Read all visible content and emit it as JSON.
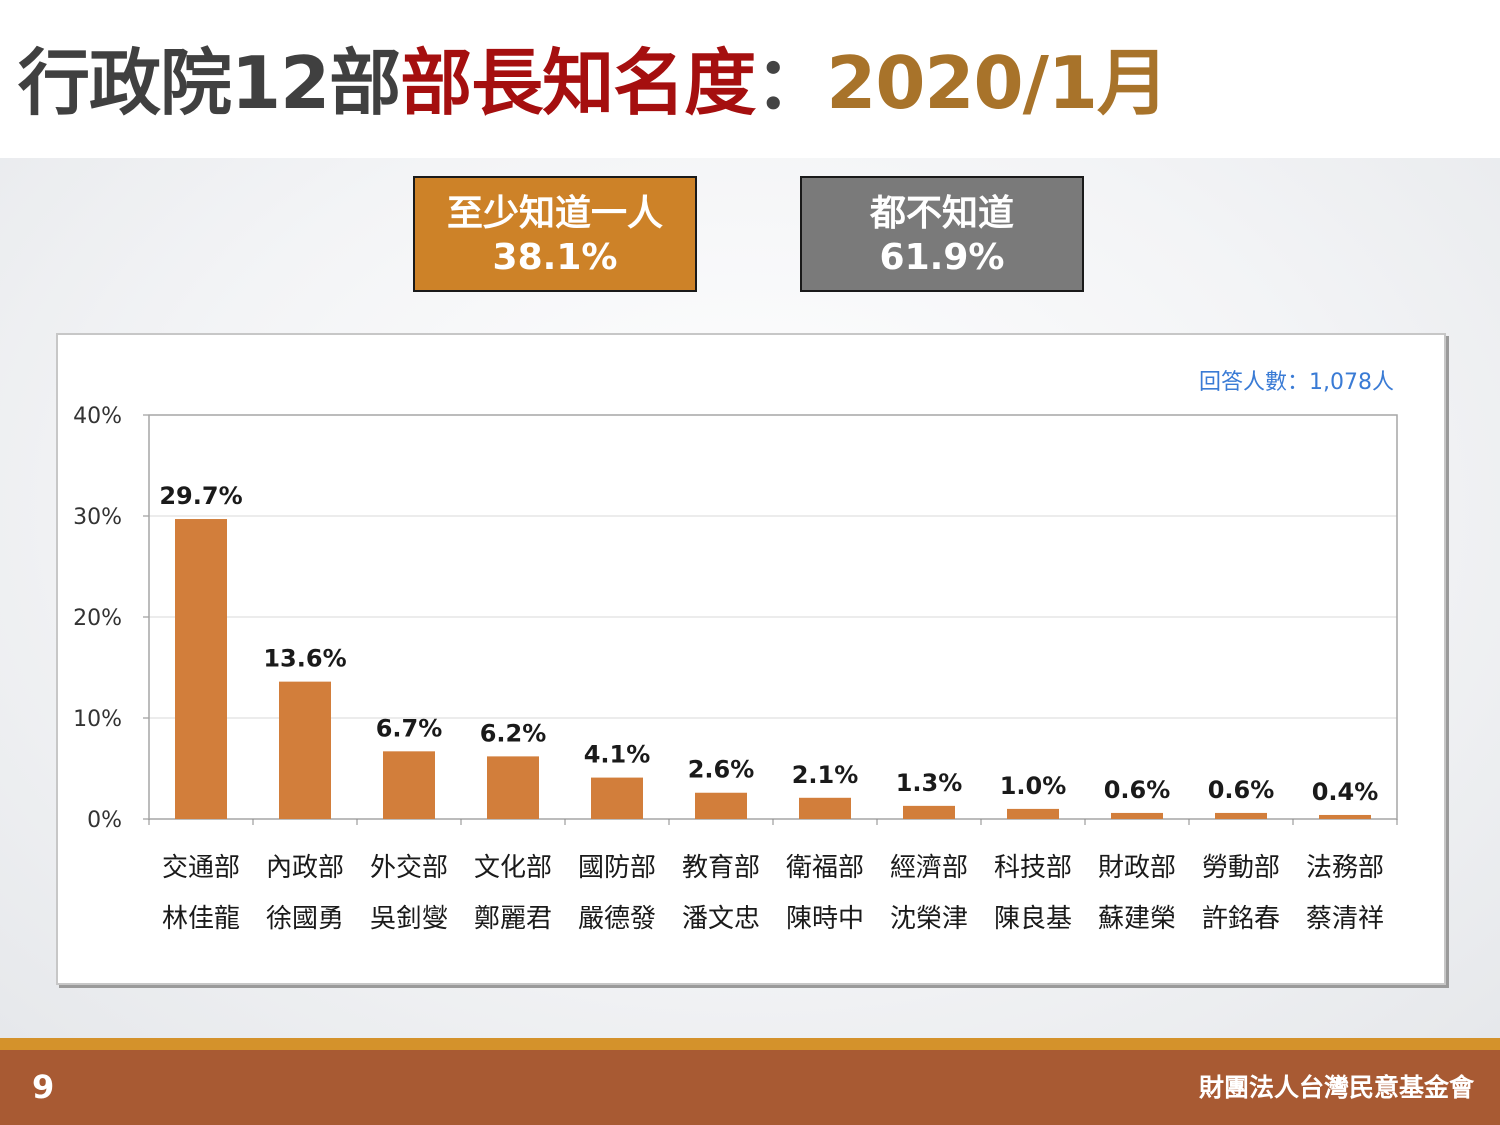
{
  "title": {
    "part1": "行政院12部",
    "part2": "部長知名度",
    "part3": "：",
    "part4": "2020/1月"
  },
  "summary": {
    "known_label": "至少知道一人",
    "known_value": "38.1%",
    "unknown_label": "都不知道",
    "unknown_value": "61.9%"
  },
  "colors": {
    "bar": "#d27e3b",
    "known_box": "#cd8228",
    "unknown_box": "#7a7a7a",
    "title_accent": "#a50f0f",
    "title_date": "#a8732a",
    "sample_text": "#3a7bd5",
    "footer": "#a85a33"
  },
  "chart_data": {
    "type": "bar",
    "categories": [
      "交通部",
      "內政部",
      "外交部",
      "文化部",
      "國防部",
      "教育部",
      "衛福部",
      "經濟部",
      "科技部",
      "財政部",
      "勞動部",
      "法務部"
    ],
    "ministers": [
      "林佳龍",
      "徐國勇",
      "吳釗燮",
      "鄭麗君",
      "嚴德發",
      "潘文忠",
      "陳時中",
      "沈榮津",
      "陳良基",
      "蘇建榮",
      "許銘春",
      "蔡清祥"
    ],
    "values": [
      29.7,
      13.6,
      6.7,
      6.2,
      4.1,
      2.6,
      2.1,
      1.3,
      1.0,
      0.6,
      0.6,
      0.4
    ],
    "data_labels": [
      "29.7%",
      "13.6%",
      "6.7%",
      "6.2%",
      "4.1%",
      "2.6%",
      "2.1%",
      "1.3%",
      "1.0%",
      "0.6%",
      "0.6%",
      "0.4%"
    ],
    "yticks": [
      0,
      10,
      20,
      30,
      40
    ],
    "ytick_labels": [
      "0%",
      "10%",
      "20%",
      "30%",
      "40%"
    ],
    "ylim": [
      0,
      40
    ],
    "grid": true,
    "sample_note": "回答人數：1,078人"
  },
  "footer": {
    "page_number": "9",
    "organization": "財團法人台灣民意基金會"
  }
}
